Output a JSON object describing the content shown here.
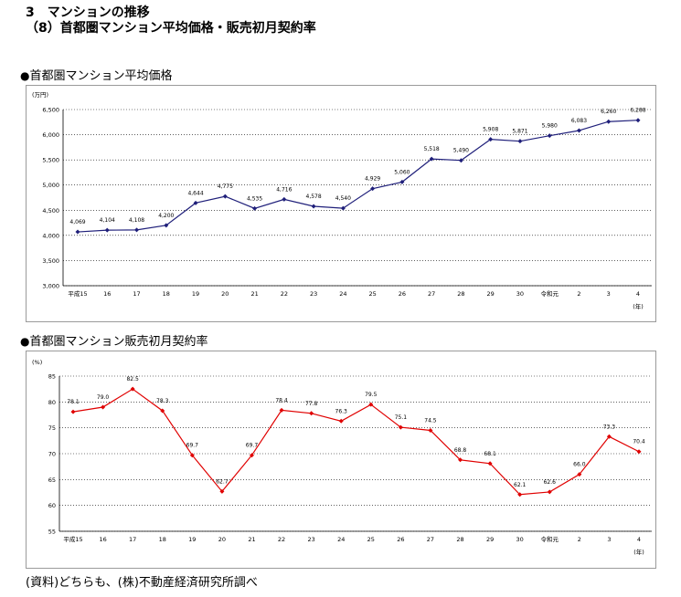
{
  "header": {
    "line1": "3　マンションの推移",
    "line2": "（8）首都圏マンション平均価格・販売初月契約率"
  },
  "sections": [
    {
      "bullet": "●",
      "title": "首都圏マンション平均価格"
    },
    {
      "bullet": "●",
      "title": "首都圏マンション販売初月契約率"
    }
  ],
  "footer": "(資料)どちらも、(株)不動産経済研究所調べ",
  "colors": {
    "price_line": "#1f1f7a",
    "rate_line": "#e00000",
    "grid": "#000000"
  },
  "chart_data": [
    {
      "type": "line",
      "unit_label": "(万円)",
      "x_unit_label": "(年)",
      "categories": [
        "平成15",
        "16",
        "17",
        "18",
        "19",
        "20",
        "21",
        "22",
        "23",
        "24",
        "25",
        "26",
        "27",
        "28",
        "29",
        "30",
        "令和元",
        "2",
        "3",
        "4"
      ],
      "series": [
        {
          "values": [
            4069,
            4104,
            4108,
            4200,
            4644,
            4775,
            4535,
            4716,
            4578,
            4540,
            4929,
            5060,
            5518,
            5490,
            5908,
            5871,
            5980,
            6083,
            6260,
            6288
          ]
        }
      ],
      "data_labels": [
        "4,069",
        "4,104",
        "4,108",
        "4,200",
        "4,644",
        "4,775",
        "4,535",
        "4,716",
        "4,578",
        "4,540",
        "4,929",
        "5,060",
        "5,518",
        "5,490",
        "5,908",
        "5,871",
        "5,980",
        "6,083",
        "6,260",
        "6,288"
      ],
      "yticks": [
        "3,000",
        "3,500",
        "4,000",
        "4,500",
        "5,000",
        "5,500",
        "6,000",
        "6,500"
      ],
      "ylim": [
        3000,
        6500
      ],
      "grid": true
    },
    {
      "type": "line",
      "unit_label": "(%)",
      "x_unit_label": "(年)",
      "categories": [
        "平成15",
        "16",
        "17",
        "18",
        "19",
        "20",
        "21",
        "22",
        "23",
        "24",
        "25",
        "26",
        "27",
        "28",
        "29",
        "30",
        "令和元",
        "2",
        "3",
        "4"
      ],
      "series": [
        {
          "values": [
            78.1,
            79.0,
            82.5,
            78.3,
            69.7,
            62.7,
            69.7,
            78.4,
            77.8,
            76.3,
            79.5,
            75.1,
            74.5,
            68.8,
            68.1,
            62.1,
            62.6,
            66.0,
            73.3,
            70.4
          ]
        }
      ],
      "data_labels": [
        "78.1",
        "79.0",
        "82.5",
        "78.3",
        "69.7",
        "62.7",
        "69.7",
        "78.4",
        "77.8",
        "76.3",
        "79.5",
        "75.1",
        "74.5",
        "68.8",
        "68.1",
        "62.1",
        "62.6",
        "66.0",
        "73.3",
        "70.4"
      ],
      "yticks": [
        "55",
        "60",
        "65",
        "70",
        "75",
        "80",
        "85"
      ],
      "ylim": [
        55,
        85
      ],
      "grid": true
    }
  ]
}
